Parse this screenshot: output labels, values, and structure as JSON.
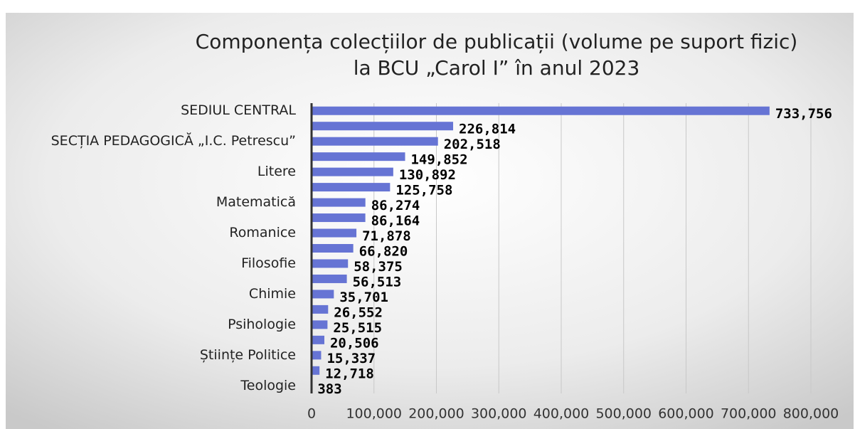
{
  "chart_data": {
    "type": "barh",
    "title": "Componența colecțiilor de publicații (volume pe suport fizic)",
    "subtitle": "la BCU „Carol I” în anul 2023",
    "categories": [
      "SEDIUL CENTRAL",
      null,
      "SECȚIA PEDAGOGICĂ „I.C. Petrescu”",
      null,
      "Litere",
      null,
      "Matematică",
      null,
      "Romanice",
      null,
      "Filosofie",
      null,
      "Chimie",
      null,
      "Psihologie",
      null,
      "Științe Politice",
      null,
      "Teologie"
    ],
    "values": [
      733756,
      226814,
      202518,
      149852,
      130892,
      125758,
      86274,
      86164,
      71878,
      66820,
      58375,
      56513,
      35701,
      26552,
      25515,
      20506,
      15337,
      12718,
      383
    ],
    "value_labels": [
      "733,756",
      "226,814",
      "202,518",
      "149,852",
      "130,892",
      "125,758",
      "86,274",
      "86,164",
      "71,878",
      "66,820",
      "58,375",
      "56,513",
      "35,701",
      "26,552",
      "25,515",
      "20,506",
      "15,337",
      "12,718",
      "383"
    ],
    "color": "#6674d4",
    "xlim": [
      0,
      800000
    ],
    "xticks": [
      0,
      {
        "value": 100000,
        "label": "100,000"
      },
      {
        "value": 200000,
        "label": "200,000"
      },
      {
        "value": 300000,
        "label": "300,000"
      },
      {
        "value": 400000,
        "label": "400,000"
      },
      {
        "value": 500000,
        "label": "500,000"
      },
      {
        "value": 600000,
        "label": "600,000"
      },
      {
        "value": 700000,
        "label": "700,000"
      },
      {
        "value": 800000,
        "label": "800,000"
      }
    ],
    "grid": true
  }
}
